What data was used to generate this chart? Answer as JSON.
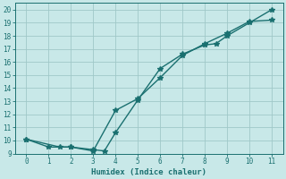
{
  "xlabel": "Humidex (Indice chaleur)",
  "ylabel": "",
  "bg_color": "#c8e8e8",
  "line_color": "#1a7070",
  "grid_color": "#a0c8c8",
  "xlim": [
    -0.5,
    11.5
  ],
  "ylim": [
    9,
    20.5
  ],
  "xticks": [
    0,
    1,
    2,
    3,
    4,
    5,
    6,
    7,
    8,
    9,
    10,
    11
  ],
  "yticks": [
    9,
    10,
    11,
    12,
    13,
    14,
    15,
    16,
    17,
    18,
    19,
    20
  ],
  "line1_x": [
    0,
    1,
    2,
    3,
    3.5,
    4,
    5,
    6,
    7,
    8,
    8.5,
    9,
    10,
    11
  ],
  "line1_y": [
    10.1,
    9.5,
    9.5,
    9.3,
    9.2,
    10.6,
    13.1,
    15.5,
    16.6,
    17.3,
    17.4,
    18.0,
    19.0,
    20.0
  ],
  "line2_x": [
    0,
    1.5,
    2,
    3,
    4,
    5,
    6,
    7,
    8,
    9,
    10,
    11
  ],
  "line2_y": [
    10.1,
    9.5,
    9.5,
    9.2,
    12.3,
    13.2,
    14.8,
    16.5,
    17.4,
    18.2,
    19.1,
    19.2
  ],
  "marker": "*",
  "marker_size": 4,
  "line_width": 1.0,
  "xlabel_fontsize": 6.5,
  "tick_fontsize": 5.5
}
